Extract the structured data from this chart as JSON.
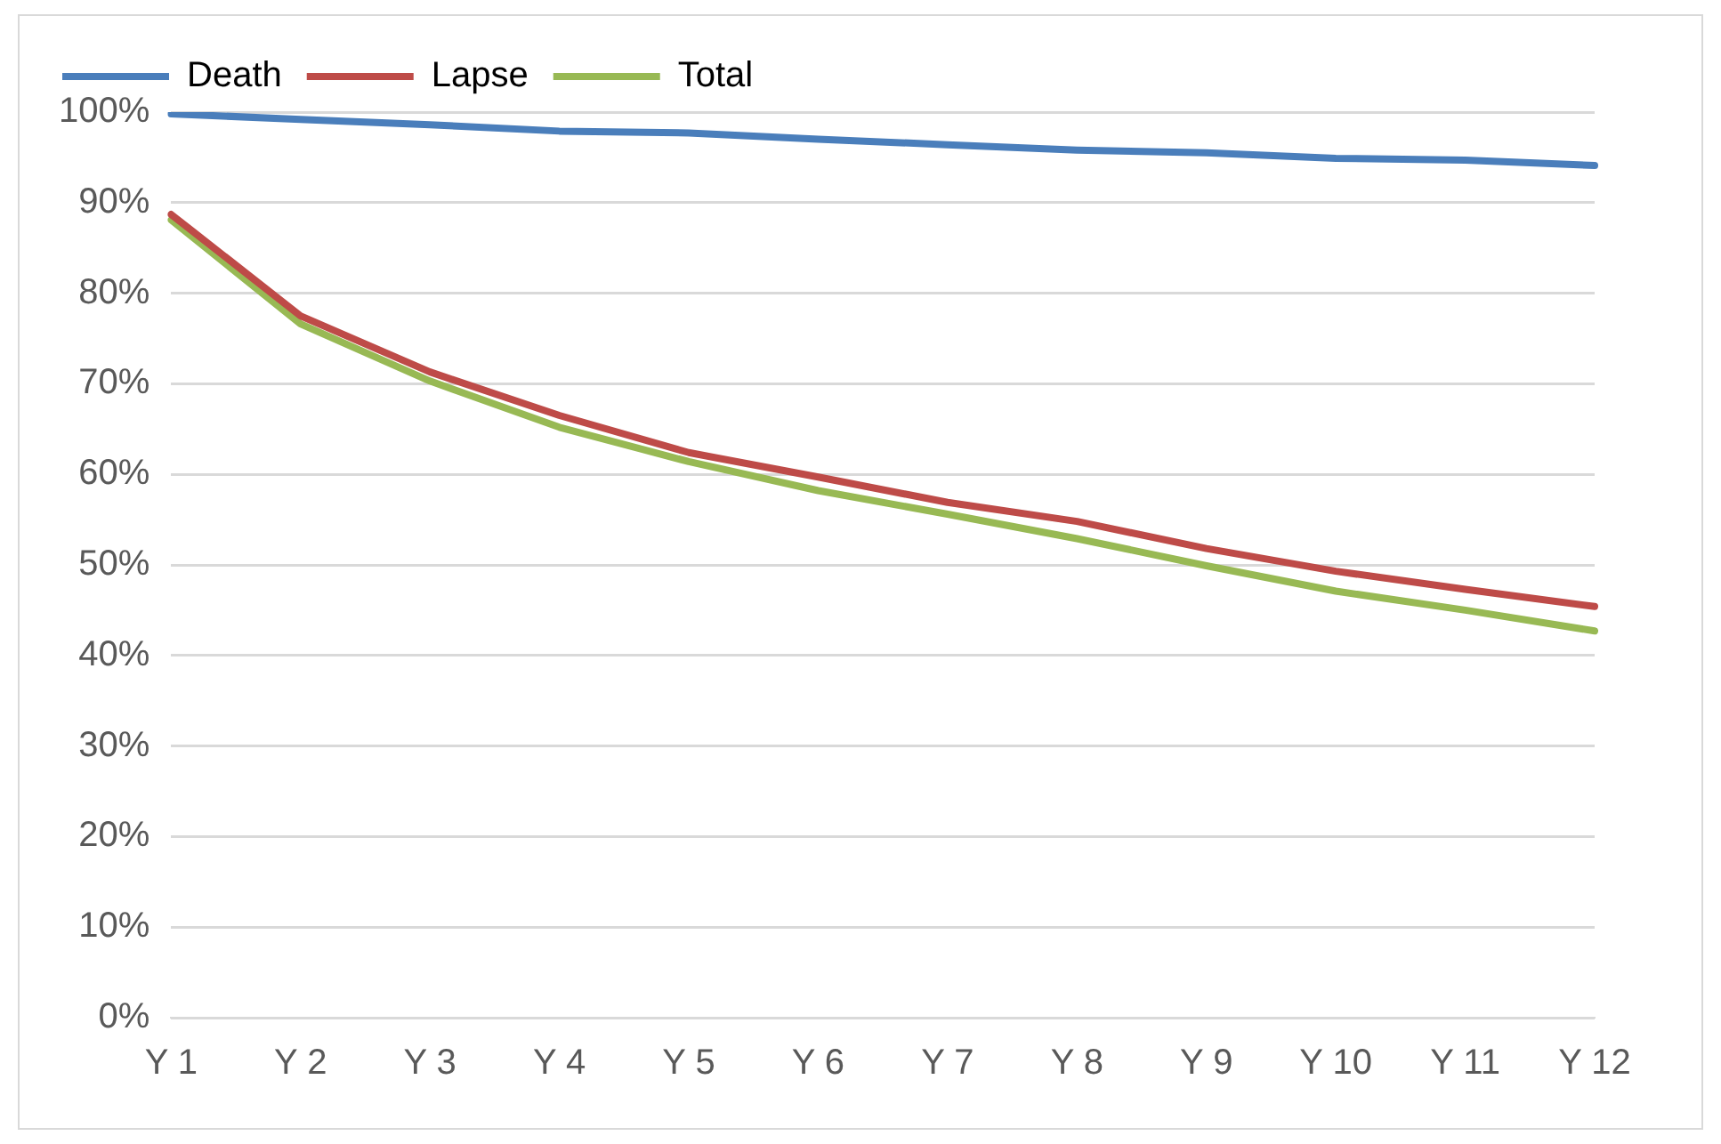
{
  "chart_data": {
    "type": "line",
    "categories": [
      "Y 1",
      "Y 2",
      "Y 3",
      "Y 4",
      "Y 5",
      "Y 6",
      "Y 7",
      "Y 8",
      "Y 9",
      "Y 10",
      "Y 11",
      "Y 12"
    ],
    "series": [
      {
        "name": "Death",
        "color": "#4a7ebb",
        "values": [
          99.8,
          99.2,
          98.6,
          97.9,
          97.7,
          97.0,
          96.4,
          95.8,
          95.5,
          94.9,
          94.7,
          94.1
        ]
      },
      {
        "name": "Lapse",
        "color": "#be4b48",
        "values": [
          88.7,
          77.5,
          71.3,
          66.5,
          62.4,
          59.7,
          56.9,
          54.8,
          51.8,
          49.3,
          47.3,
          45.4
        ]
      },
      {
        "name": "Total",
        "color": "#98b954",
        "values": [
          88.1,
          76.6,
          70.3,
          65.2,
          61.4,
          58.2,
          55.6,
          52.9,
          49.9,
          47.1,
          45.0,
          42.7
        ]
      }
    ],
    "ylim": [
      0,
      100
    ],
    "yticks": [
      {
        "value": 0,
        "label": "0%"
      },
      {
        "value": 10,
        "label": "10%"
      },
      {
        "value": 20,
        "label": "20%"
      },
      {
        "value": 30,
        "label": "30%"
      },
      {
        "value": 40,
        "label": "40%"
      },
      {
        "value": 50,
        "label": "50%"
      },
      {
        "value": 60,
        "label": "60%"
      },
      {
        "value": 70,
        "label": "70%"
      },
      {
        "value": 80,
        "label": "80%"
      },
      {
        "value": 90,
        "label": "90%"
      },
      {
        "value": 100,
        "label": "100%"
      }
    ],
    "grid": "y",
    "legend": "top left",
    "marker": "none",
    "line_style": "solid"
  }
}
